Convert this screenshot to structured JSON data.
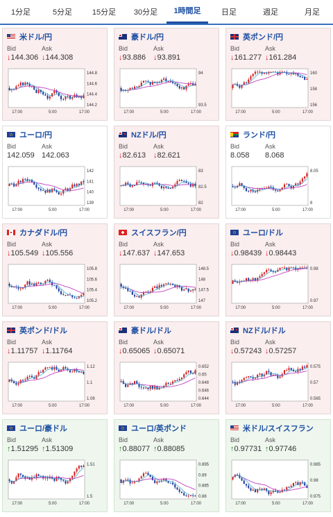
{
  "tabs": [
    {
      "label": "1分足",
      "active": false
    },
    {
      "label": "5分足",
      "active": false
    },
    {
      "label": "15分足",
      "active": false
    },
    {
      "label": "30分足",
      "active": false
    },
    {
      "label": "1時間足",
      "active": true
    },
    {
      "label": "日足",
      "active": false
    },
    {
      "label": "週足",
      "active": false
    },
    {
      "label": "月足",
      "active": false
    }
  ],
  "labels": {
    "bid": "Bid",
    "ask": "Ask"
  },
  "time_ticks": [
    "17:00",
    "5:00",
    "17:00"
  ],
  "colors": {
    "up_candle": "#d42020",
    "down_candle": "#1f3f9a",
    "ma_line": "#c040c0",
    "ma2_line": "#30a0c8"
  },
  "cards": [
    {
      "pair": "米ドル/円",
      "flag": "us",
      "trend": "down",
      "bid": "144.306",
      "ask": "144.308",
      "arrow": "down",
      "yticks": [
        "144.8",
        "144.6",
        "144.4",
        "144.2"
      ],
      "ma": "magenta"
    },
    {
      "pair": "豪ドル/円",
      "flag": "au",
      "trend": "down",
      "bid": "93.886",
      "ask": "93.891",
      "arrow": "down",
      "yticks": [
        "94",
        "93.5"
      ],
      "ma": "magenta"
    },
    {
      "pair": "英ポンド/円",
      "flag": "gb",
      "trend": "down",
      "bid": "161.277",
      "ask": "161.284",
      "arrow": "down",
      "yticks": [
        "160",
        "158",
        "156"
      ],
      "ma": "magenta"
    },
    {
      "pair": "ユーロ/円",
      "flag": "eu",
      "trend": "neutral",
      "bid": "142.059",
      "ask": "142.063",
      "arrow": "none",
      "yticks": [
        "142",
        "141",
        "140",
        "139"
      ],
      "ma": "magenta"
    },
    {
      "pair": "NZドル/円",
      "flag": "nz",
      "trend": "down",
      "bid": "82.613",
      "ask": "82.621",
      "arrow": "down",
      "yticks": [
        "83",
        "82.5",
        "82"
      ],
      "ma": "magenta"
    },
    {
      "pair": "ランド/円",
      "flag": "za",
      "trend": "neutral",
      "bid": "8.058",
      "ask": "8.068",
      "arrow": "none",
      "yticks": [
        "8.05",
        "8"
      ],
      "ma": "magenta"
    },
    {
      "pair": "カナダドル/円",
      "flag": "ca",
      "trend": "down",
      "bid": "105.549",
      "ask": "105.556",
      "arrow": "down",
      "yticks": [
        "105.8",
        "105.6",
        "105.4",
        "105.2"
      ],
      "ma": "magenta"
    },
    {
      "pair": "スイスフラン/円",
      "flag": "ch",
      "trend": "down",
      "bid": "147.637",
      "ask": "147.653",
      "arrow": "down",
      "yticks": [
        "148.5",
        "148",
        "147.5",
        "147"
      ],
      "ma": "magenta"
    },
    {
      "pair": "ユーロ/ドル",
      "flag": "eu",
      "trend": "down",
      "bid": "0.98439",
      "ask": "0.98443",
      "arrow": "down",
      "yticks": [
        "0.98",
        "0.97"
      ],
      "ma": "magenta"
    },
    {
      "pair": "英ポンド/ドル",
      "flag": "gb",
      "trend": "down",
      "bid": "1.11757",
      "ask": "1.11764",
      "arrow": "down",
      "yticks": [
        "1.12",
        "1.1",
        "1.08"
      ],
      "ma": "magenta"
    },
    {
      "pair": "豪ドル/ドル",
      "flag": "au",
      "trend": "down",
      "bid": "0.65065",
      "ask": "0.65071",
      "arrow": "down",
      "yticks": [
        "0.652",
        "0.65",
        "0.648",
        "0.646",
        "0.644"
      ],
      "ma": "magenta"
    },
    {
      "pair": "NZドル/ドル",
      "flag": "nz",
      "trend": "down",
      "bid": "0.57243",
      "ask": "0.57257",
      "arrow": "down",
      "yticks": [
        "0.575",
        "0.57",
        "0.565"
      ],
      "ma": "magenta"
    },
    {
      "pair": "ユーロ/豪ドル",
      "flag": "eu",
      "trend": "up",
      "bid": "1.51295",
      "ask": "1.51309",
      "arrow": "up",
      "yticks": [
        "1.51",
        "1.5"
      ],
      "ma": "magenta"
    },
    {
      "pair": "ユーロ/英ポンド",
      "flag": "eu",
      "trend": "up",
      "bid": "0.88077",
      "ask": "0.88085",
      "arrow": "up",
      "yticks": [
        "0.895",
        "0.89",
        "0.885",
        "0.88"
      ],
      "ma": "magenta"
    },
    {
      "pair": "米ドル/スイスフラン",
      "flag": "us",
      "trend": "up",
      "bid": "0.97731",
      "ask": "0.97746",
      "arrow": "up",
      "yticks": [
        "0.985",
        "0.98",
        "0.975"
      ],
      "ma": "magenta"
    }
  ]
}
